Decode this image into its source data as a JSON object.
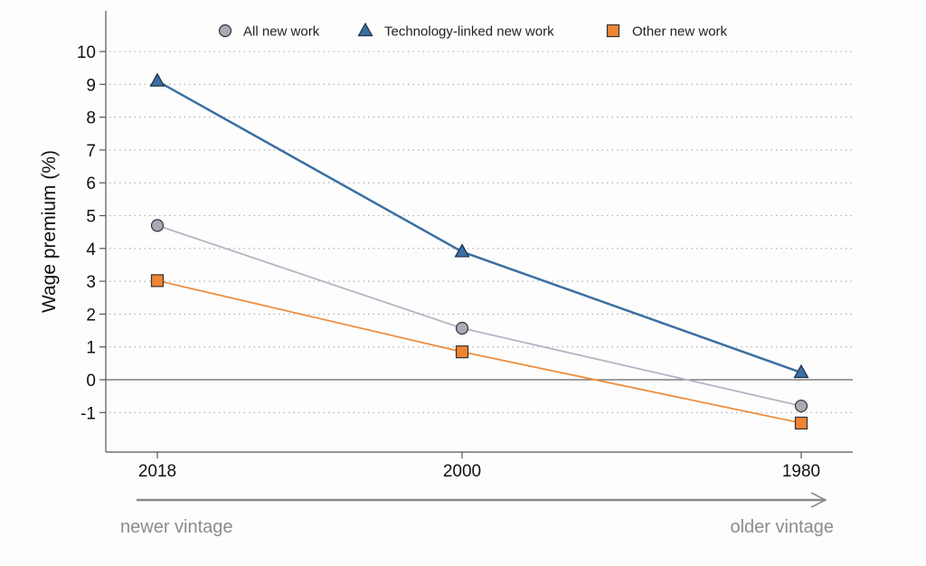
{
  "chart_data": {
    "type": "line",
    "title": "",
    "xlabel": "",
    "ylabel": "Wage premium (%)",
    "categories": [
      "2018",
      "2000",
      "1980"
    ],
    "ylim": [
      -2.2,
      11.0
    ],
    "yticks": [
      -1,
      0,
      1,
      2,
      3,
      4,
      5,
      6,
      7,
      8,
      9,
      10
    ],
    "grid": "horizontal dotted",
    "legend_position": "top",
    "series": [
      {
        "name": "All new work",
        "marker": "circle",
        "color": "#b4b4c4",
        "marker_fill": "#a7abb7",
        "values": [
          4.7,
          1.57,
          -0.8
        ]
      },
      {
        "name": "Technology-linked new work",
        "marker": "triangle",
        "color": "#3a6fa1",
        "marker_fill": "#3a6fa1",
        "values": [
          9.1,
          3.9,
          0.22
        ]
      },
      {
        "name": "Other new work",
        "marker": "square",
        "color": "#ef8d3d",
        "marker_fill": "#ef8433",
        "values": [
          3.02,
          0.85,
          -1.32
        ]
      }
    ],
    "annotations": {
      "arrow_left_label": "newer vintage",
      "arrow_right_label": "older vintage"
    }
  }
}
